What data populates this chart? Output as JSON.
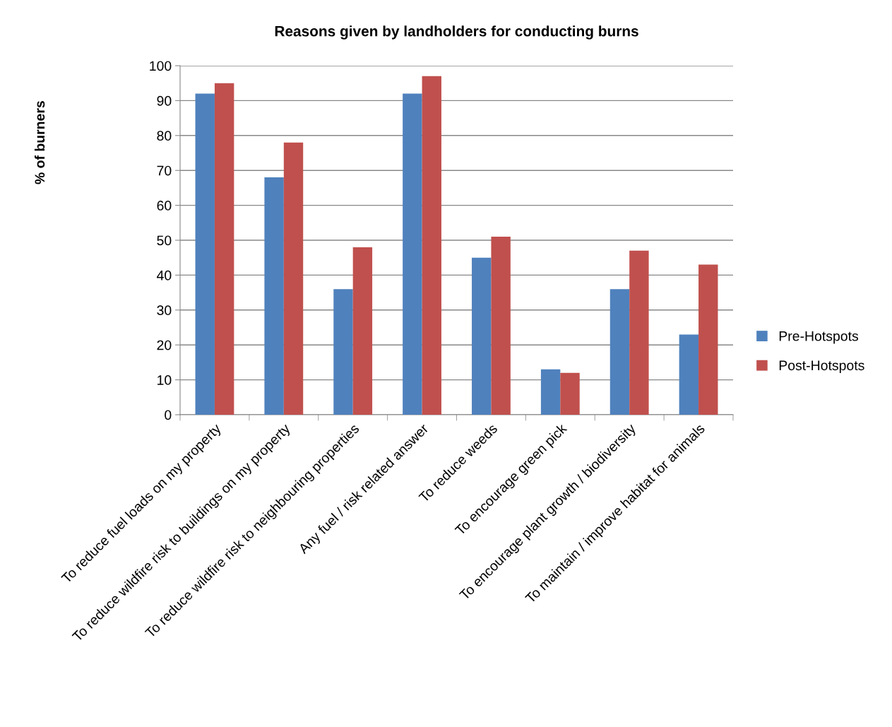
{
  "chart_data": {
    "type": "bar",
    "title": "Reasons given by landholders for conducting burns",
    "ylabel": "% of burners",
    "categories": [
      "To reduce fuel loads on my property",
      "To reduce wildfire risk to buildings on my property",
      "To reduce wildfire risk to neighbouring properties",
      "Any fuel / risk related answer",
      "To reduce weeds",
      "To encourage green pick",
      "To encourage plant growth / biodiversity",
      "To maintain / improve habitat for animals"
    ],
    "series": [
      {
        "name": "Pre-Hotspots",
        "color": "#4f81bd",
        "values": [
          92,
          68,
          36,
          92,
          45,
          13,
          36,
          23
        ]
      },
      {
        "name": "Post-Hotspots",
        "color": "#c0504d",
        "values": [
          95,
          78,
          48,
          97,
          51,
          12,
          47,
          43
        ]
      }
    ],
    "ylim": [
      0,
      100
    ],
    "yticks": [
      0,
      10,
      20,
      30,
      40,
      50,
      60,
      70,
      80,
      90,
      100
    ],
    "grid": "y",
    "legend": "right"
  }
}
